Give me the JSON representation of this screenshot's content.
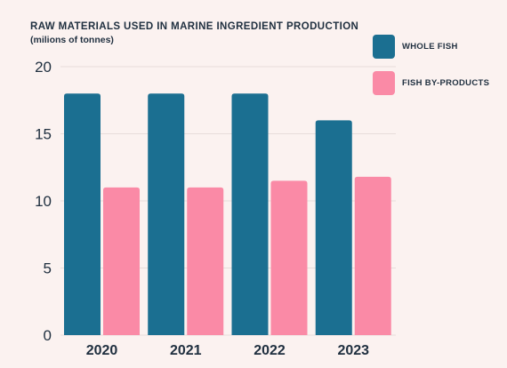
{
  "chart_data": {
    "type": "bar",
    "title": "RAW MATERIALS USED IN MARINE INGREDIENT PRODUCTION",
    "subtitle": "(milions of tonnes)",
    "categories": [
      "2020",
      "2021",
      "2022",
      "2023"
    ],
    "series": [
      {
        "name": "WHOLE FISH",
        "color": "#1b6f91",
        "values": [
          18,
          18,
          18,
          16
        ]
      },
      {
        "name": "FISH BY-PRODUCTS",
        "color": "#fa8aa6",
        "values": [
          11,
          11,
          11.5,
          11.8
        ]
      }
    ],
    "ylim": [
      0,
      20
    ],
    "yticks": [
      "0",
      "5",
      "10",
      "15",
      "20"
    ],
    "grid": true,
    "legend": "top-right"
  }
}
